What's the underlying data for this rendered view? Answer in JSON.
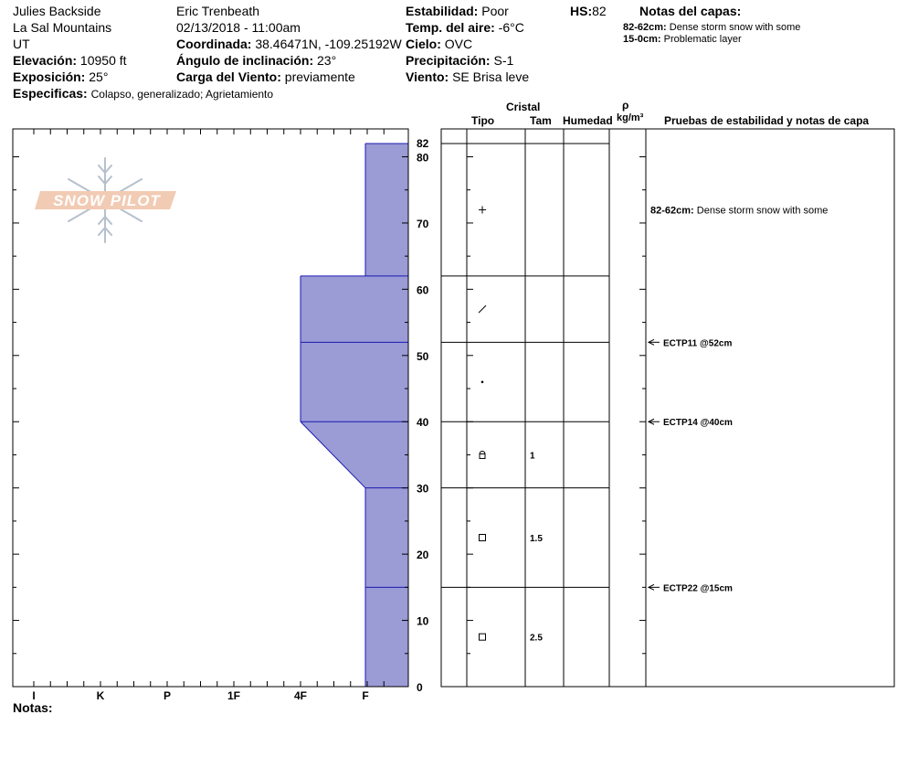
{
  "header": {
    "location": "Julies Backside",
    "range": "La Sal Mountains",
    "state": "UT",
    "elevation_label": "Elevación:",
    "elevation_value": "10950 ft",
    "aspect_label": "Exposición:",
    "aspect_value": "25°",
    "specifics_label": "Especificas:",
    "specifics_value": "Colapso, generalizado; Agrietamiento",
    "observer": "Eric Trenbeath",
    "datetime": "02/13/2018 - 11:00am",
    "coord_label": "Coordinada:",
    "coord_value": "38.46471N, -109.25192W",
    "incline_label": "Ángulo de inclinación:",
    "incline_value": "23°",
    "wind_load_label": "Carga del Viento:",
    "wind_load_value": "previamente",
    "stability_label": "Estabilidad:",
    "stability_value": "Poor",
    "air_temp_label": "Temp. del aire:",
    "air_temp_value": "-6°C",
    "sky_label": "Cielo:",
    "sky_value": "OVC",
    "precip_label": "Precipitación:",
    "precip_value": "S-1",
    "wind_label": "Viento:",
    "wind_value": "SE  Brisa leve",
    "hs_label": "HS:",
    "hs_value": "82",
    "layer_notes_title": "Notas del capas:",
    "layer_notes": [
      {
        "range": "82-62cm:",
        "text": "Dense storm snow with some"
      },
      {
        "range": "15-0cm:",
        "text": "Problematic layer"
      }
    ]
  },
  "logo": {
    "text": "SNOW PILOT"
  },
  "columns": {
    "cristal": "Cristal",
    "tipo": "Tipo",
    "tam": "Tam",
    "humedad": "Humedad",
    "rho": "ρ",
    "density_unit": "kg/m³",
    "tests": "Pruebas de estabilidad y notas de capa"
  },
  "footer": {
    "notes_label": "Notas:"
  },
  "colors": {
    "layer_fill": "#9b9bd6",
    "layer_line": "#1a1ab0",
    "axis": "#000000"
  },
  "chart_data": {
    "type": "snow-profile",
    "height_unit": "cm",
    "height_range": [
      0,
      82
    ],
    "height_ticks": [
      0,
      10,
      20,
      30,
      40,
      50,
      60,
      70,
      80,
      82
    ],
    "hardness_scale": [
      "I",
      "K",
      "P",
      "1F",
      "4F",
      "F"
    ],
    "layers": [
      {
        "top": 82,
        "bottom": 62,
        "hardness_top": "F",
        "hardness_bottom": "F",
        "grain": "+",
        "grain_icon": "precipitation-particles-icon",
        "size": ""
      },
      {
        "top": 62,
        "bottom": 52,
        "hardness_top": "4F",
        "hardness_bottom": "4F",
        "grain": "/",
        "grain_icon": "decomposing-fragments-icon",
        "size": ""
      },
      {
        "top": 52,
        "bottom": 40,
        "hardness_top": "4F",
        "hardness_bottom": "4F",
        "grain": "•",
        "grain_icon": "rounded-grains-icon",
        "size": ""
      },
      {
        "top": 40,
        "bottom": 30,
        "hardness_top": "4F",
        "hardness_bottom": "F",
        "grain": "faceted-rounded",
        "grain_icon": "faceted-rounding-icon",
        "size": "1"
      },
      {
        "top": 30,
        "bottom": 15,
        "hardness_top": "F",
        "hardness_bottom": "F",
        "grain": "□",
        "grain_icon": "faceted-crystals-icon",
        "size": "1.5"
      },
      {
        "top": 15,
        "bottom": 0,
        "hardness_top": "F",
        "hardness_bottom": "F",
        "grain": "□",
        "grain_icon": "faceted-crystals-icon",
        "size": "2.5"
      }
    ],
    "tests": [
      {
        "depth": 52,
        "label": "ECTP11 @52cm"
      },
      {
        "depth": 40,
        "label": "ECTP14 @40cm"
      },
      {
        "depth": 15,
        "label": "ECTP22 @15cm"
      }
    ],
    "layer_notes": [
      {
        "depth": 72,
        "range": "82-62cm:",
        "text": "Dense storm snow with some"
      }
    ]
  }
}
